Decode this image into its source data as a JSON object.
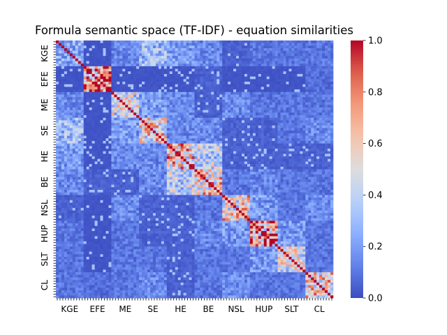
{
  "chart_data": {
    "type": "heatmap",
    "title": "Formula semantic space (TF-IDF) - equation similarities",
    "xlabel": "",
    "ylabel": "",
    "categories": [
      "KGE",
      "EFE",
      "ME",
      "SE",
      "HE",
      "BE",
      "NSL",
      "HUP",
      "SLT",
      "CL"
    ],
    "items_per_category": 10,
    "colormap": "coolwarm",
    "colorbar": {
      "min": 0.0,
      "max": 1.0,
      "ticks": [
        "0.0",
        "0.2",
        "0.4",
        "0.6",
        "0.8",
        "1.0"
      ]
    },
    "block_similarity": [
      [
        0.25,
        0.02,
        0.15,
        0.3,
        0.2,
        0.15,
        0.05,
        0.1,
        0.1,
        0.1
      ],
      [
        0.02,
        0.78,
        0.02,
        0.02,
        0.02,
        0.05,
        0.02,
        0.02,
        0.02,
        0.08
      ],
      [
        0.15,
        0.02,
        0.45,
        0.2,
        0.15,
        0.05,
        0.15,
        0.1,
        0.1,
        0.1
      ],
      [
        0.3,
        0.02,
        0.2,
        0.55,
        0.15,
        0.15,
        0.05,
        0.05,
        0.1,
        0.15
      ],
      [
        0.2,
        0.02,
        0.15,
        0.15,
        0.6,
        0.4,
        0.05,
        0.05,
        0.05,
        0.05
      ],
      [
        0.15,
        0.05,
        0.05,
        0.15,
        0.4,
        0.6,
        0.1,
        0.15,
        0.1,
        0.1
      ],
      [
        0.05,
        0.02,
        0.15,
        0.05,
        0.05,
        0.1,
        0.55,
        0.2,
        0.1,
        0.15
      ],
      [
        0.1,
        0.02,
        0.1,
        0.05,
        0.05,
        0.15,
        0.2,
        0.7,
        0.2,
        0.1
      ],
      [
        0.1,
        0.02,
        0.1,
        0.1,
        0.05,
        0.1,
        0.1,
        0.2,
        0.45,
        0.1
      ],
      [
        0.1,
        0.08,
        0.1,
        0.15,
        0.05,
        0.1,
        0.15,
        0.1,
        0.1,
        0.55
      ]
    ],
    "diagonal_value": 1.0,
    "grid": false,
    "legend": "colorbar-right"
  }
}
